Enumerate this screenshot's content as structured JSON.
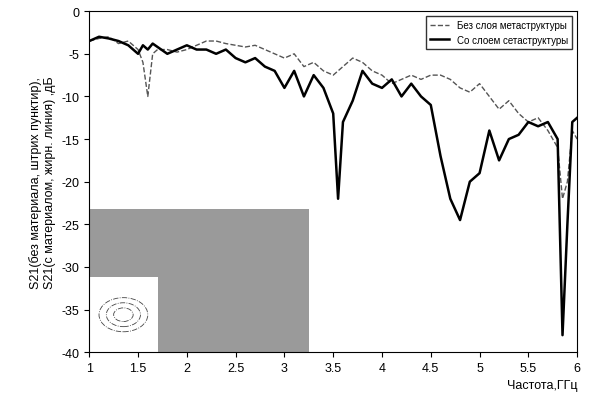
{
  "chart_data": {
    "type": "line",
    "x_label": "Частота,ГГц",
    "y_label": "S21(без материала, штрих пунктир),\nS21(с материалом, жирн. линия) ,дБ",
    "x": [
      1.0,
      1.1,
      1.2,
      1.3,
      1.4,
      1.5,
      1.55,
      1.6,
      1.65,
      1.7,
      1.8,
      1.9,
      2.0,
      2.1,
      2.2,
      2.3,
      2.4,
      2.5,
      2.6,
      2.7,
      2.8,
      2.9,
      3.0,
      3.1,
      3.2,
      3.3,
      3.4,
      3.5,
      3.55,
      3.6,
      3.7,
      3.8,
      3.9,
      4.0,
      4.1,
      4.2,
      4.3,
      4.4,
      4.5,
      4.6,
      4.7,
      4.8,
      4.9,
      5.0,
      5.1,
      5.2,
      5.3,
      5.4,
      5.5,
      5.6,
      5.7,
      5.8,
      5.85,
      5.9,
      5.95,
      6.0
    ],
    "series": [
      {
        "name": "Без слоя метаструктуры",
        "color": "#555555",
        "line_style": "dashed",
        "values": [
          -3.5,
          -3.2,
          -3.0,
          -3.8,
          -3.5,
          -4.5,
          -6.0,
          -10.0,
          -5.0,
          -4.5,
          -4.5,
          -4.8,
          -4.5,
          -4.0,
          -3.5,
          -3.5,
          -3.8,
          -4.0,
          -4.2,
          -4.0,
          -4.5,
          -5.0,
          -5.5,
          -5.0,
          -6.5,
          -6.0,
          -7.0,
          -7.5,
          -7.0,
          -6.5,
          -5.5,
          -6.0,
          -7.0,
          -7.5,
          -8.5,
          -8.0,
          -7.5,
          -8.0,
          -7.5,
          -7.5,
          -8.0,
          -9.0,
          -9.5,
          -8.5,
          -10.0,
          -11.5,
          -10.5,
          -12.0,
          -13.0,
          -12.5,
          -14.0,
          -16.0,
          -22.0,
          -20.0,
          -14.0,
          -15.0
        ]
      },
      {
        "name": "Со слоем сетаструктуры",
        "color": "#000000",
        "line_style": "solid",
        "values": [
          -3.5,
          -3.0,
          -3.2,
          -3.5,
          -4.0,
          -5.0,
          -4.0,
          -4.5,
          -3.8,
          -4.2,
          -5.0,
          -4.5,
          -4.0,
          -4.5,
          -4.5,
          -5.0,
          -4.5,
          -5.5,
          -6.0,
          -5.5,
          -6.5,
          -7.0,
          -9.0,
          -7.0,
          -10.0,
          -7.5,
          -9.0,
          -12.0,
          -22.0,
          -13.0,
          -10.5,
          -7.0,
          -8.5,
          -9.0,
          -8.0,
          -10.0,
          -8.5,
          -10.0,
          -11.0,
          -17.0,
          -22.0,
          -24.5,
          -20.0,
          -19.0,
          -14.0,
          -17.5,
          -15.0,
          -14.5,
          -13.0,
          -13.5,
          -13.0,
          -15.0,
          -38.0,
          -25.0,
          -13.0,
          -12.5
        ]
      }
    ],
    "xlim": [
      1,
      6
    ],
    "xticks": [
      1,
      1.5,
      2,
      2.5,
      3,
      3.5,
      4,
      4.5,
      5,
      5.5,
      6
    ],
    "ylim": [
      -40,
      0
    ],
    "yticks": [
      -40,
      -35,
      -30,
      -25,
      -20,
      -15,
      -10,
      -5,
      0
    ],
    "grid": false,
    "legend": "upper right"
  }
}
